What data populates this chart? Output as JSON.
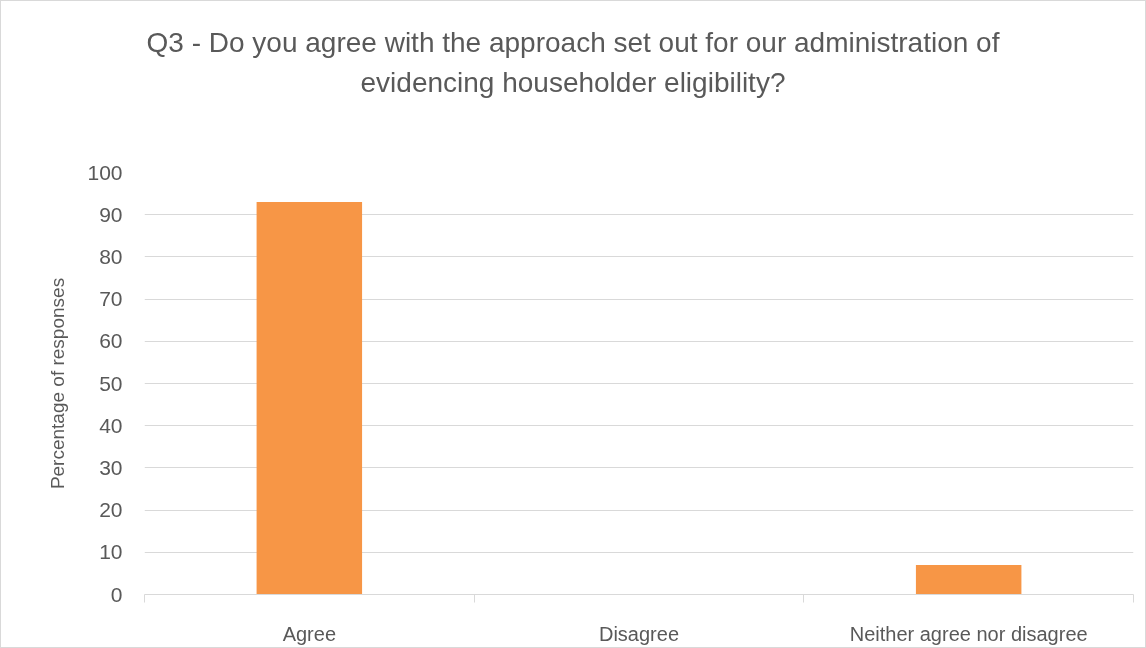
{
  "chart_data": {
    "type": "bar",
    "title": "Q3 - Do you agree with the approach set out for our administration of evidencing householder eligibility?",
    "ylabel": "Percentage of responses",
    "categories": [
      "Agree",
      "Disagree",
      "Neither agree nor disagree"
    ],
    "values": [
      93,
      0,
      7
    ],
    "color": "#f79646",
    "ylim": [
      0,
      100
    ],
    "yticks": [
      0,
      10,
      20,
      30,
      40,
      50,
      60,
      70,
      80,
      90,
      100
    ],
    "grid": "y"
  }
}
